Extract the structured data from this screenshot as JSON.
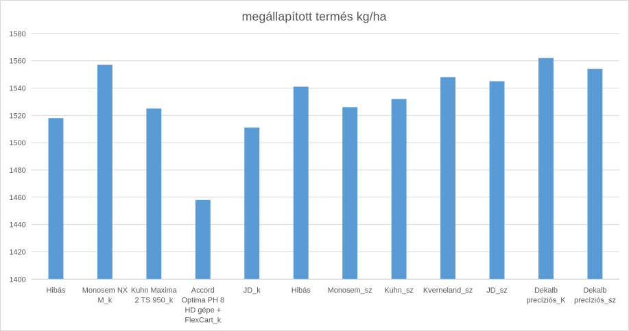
{
  "chart_data": {
    "type": "bar",
    "title": "megállapított termés kg/ha",
    "xlabel": "",
    "ylabel": "",
    "ylim": [
      1400,
      1580
    ],
    "yticks": [
      1400,
      1420,
      1440,
      1460,
      1480,
      1500,
      1520,
      1540,
      1560,
      1580
    ],
    "grid": true,
    "bar_color": "#5b9bd5",
    "categories": [
      [
        "Hibás"
      ],
      [
        "Monosem NX",
        "M_k"
      ],
      [
        "Kuhn Maxima",
        "2 TS 950_k"
      ],
      [
        "Accord",
        "Optima PH 8",
        "HD gépe +",
        "FlexCart_k"
      ],
      [
        "JD_k"
      ],
      [
        "Hibás"
      ],
      [
        "Monosem_sz"
      ],
      [
        "Kuhn_sz"
      ],
      [
        "Kverneland_sz"
      ],
      [
        "JD_sz"
      ],
      [
        "Dekalb",
        "precíziós_K"
      ],
      [
        "Dekalb",
        "precíziós_sz"
      ]
    ],
    "values": [
      1518,
      1557,
      1525,
      1458,
      1511,
      1541,
      1526,
      1532,
      1548,
      1545,
      1562,
      1554
    ]
  }
}
